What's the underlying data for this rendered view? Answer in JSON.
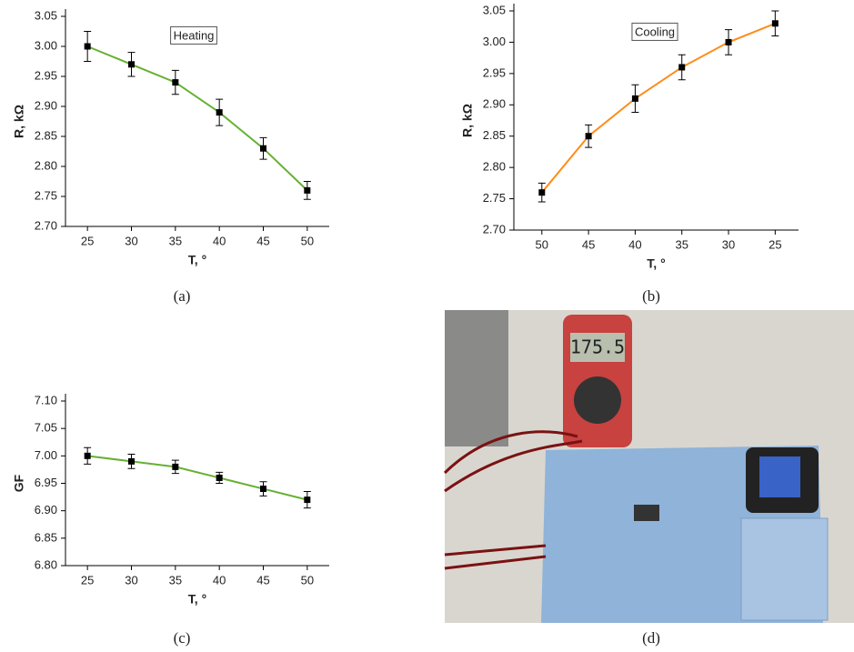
{
  "chart_data": [
    {
      "type": "line",
      "caption": "(a)",
      "annotation": "Heating",
      "x_label": "T, °",
      "y_label": "R, kΩ",
      "x": [
        25,
        30,
        35,
        40,
        45,
        50
      ],
      "series": [
        {
          "color": "#66b032",
          "values": [
            3.0,
            2.97,
            2.94,
            2.89,
            2.83,
            2.76
          ],
          "errors": [
            0.025,
            0.02,
            0.02,
            0.022,
            0.018,
            0.015
          ]
        }
      ],
      "xlim": [
        22.5,
        52.5
      ],
      "xticks": [
        25,
        30,
        35,
        40,
        45,
        50
      ],
      "ylim": [
        2.7,
        3.05
      ],
      "yticks": [
        {
          "value": 2.7,
          "label": "2.70"
        },
        2.75,
        {
          "value": 2.8,
          "label": "2.80"
        },
        2.85,
        {
          "value": 2.9,
          "label": "2.90"
        },
        2.95,
        {
          "value": 3.0,
          "label": "3.00"
        },
        3.05
      ]
    },
    {
      "type": "line",
      "caption": "(b)",
      "annotation": "Cooling",
      "x_label": "T, °",
      "y_label": "R, kΩ",
      "x": [
        50,
        45,
        40,
        35,
        30,
        25
      ],
      "series": [
        {
          "color": "#ff8c1a",
          "values": [
            2.76,
            2.85,
            2.91,
            2.96,
            3.0,
            3.03
          ],
          "errors": [
            0.015,
            0.018,
            0.022,
            0.02,
            0.02,
            0.02
          ]
        }
      ],
      "xlim": [
        53,
        22.5
      ],
      "xticks": [
        50,
        45,
        40,
        35,
        30,
        25
      ],
      "ylim": [
        2.7,
        3.05
      ],
      "yticks": [
        {
          "value": 2.7,
          "label": "2.70"
        },
        2.75,
        {
          "value": 2.8,
          "label": "2.80"
        },
        2.85,
        {
          "value": 2.9,
          "label": "2.90"
        },
        2.95,
        {
          "value": 3.0,
          "label": "3.00"
        },
        3.05
      ]
    },
    {
      "type": "line",
      "caption": "(c)",
      "x_label": "T, °",
      "y_label": "GF",
      "x": [
        25,
        30,
        35,
        40,
        45,
        50
      ],
      "series": [
        {
          "color": "#66b032",
          "values": [
            7.0,
            6.99,
            6.98,
            6.96,
            6.94,
            6.92
          ],
          "errors": [
            0.015,
            0.013,
            0.012,
            0.01,
            0.013,
            0.015
          ]
        }
      ],
      "xlim": [
        22.5,
        52.5
      ],
      "xticks": [
        25,
        30,
        35,
        40,
        45,
        50
      ],
      "ylim": [
        6.8,
        7.1
      ],
      "yticks": [
        {
          "value": 6.8,
          "label": "6.80"
        },
        6.85,
        {
          "value": 6.9,
          "label": "6.90"
        },
        6.95,
        {
          "value": 7.0,
          "label": "7.00"
        },
        7.05,
        {
          "value": 7.1,
          "label": "7.10"
        }
      ]
    }
  ],
  "photo": {
    "caption": "(d)",
    "meter_reading": "175.5"
  }
}
